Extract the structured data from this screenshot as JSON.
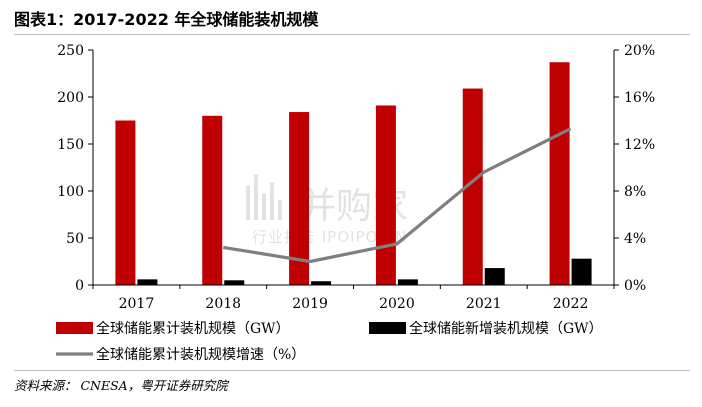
{
  "header": {
    "title": "图表1：2017-2022 年全球储能装机规模"
  },
  "source": {
    "text": "资料来源： CNESA，粤开证券研究院"
  },
  "watermark": {
    "main": "并购家",
    "sub": "行业报告 IPOIPO.CN"
  },
  "colors": {
    "cumulative": "#c00000",
    "new": "#000000",
    "growth": "#7f7f7f",
    "axis": "#000000"
  },
  "chart_data": {
    "type": "bar",
    "categories": [
      "2017",
      "2018",
      "2019",
      "2020",
      "2021",
      "2022"
    ],
    "series": [
      {
        "name": "全球储能累计装机规模（GW）",
        "type": "bar",
        "axis": "left",
        "values": [
          175,
          180,
          184,
          191,
          209,
          237
        ]
      },
      {
        "name": "全球储能新增装机规模（GW）",
        "type": "bar",
        "axis": "left",
        "values": [
          6,
          5,
          4,
          6,
          18,
          28
        ]
      },
      {
        "name": "全球储能累计装机规模增速（%）",
        "type": "line",
        "axis": "right",
        "values": [
          null,
          3.2,
          2.0,
          3.5,
          9.6,
          13.3
        ]
      }
    ],
    "y_left": {
      "lim": [
        0,
        250
      ],
      "ticks": [
        "0",
        "50",
        "100",
        "150",
        "200",
        "250"
      ]
    },
    "y_right": {
      "lim": [
        0,
        20
      ],
      "ticks": [
        "0%",
        "4%",
        "8%",
        "12%",
        "16%",
        "20%"
      ]
    },
    "grid": false,
    "legend": "bottom"
  }
}
